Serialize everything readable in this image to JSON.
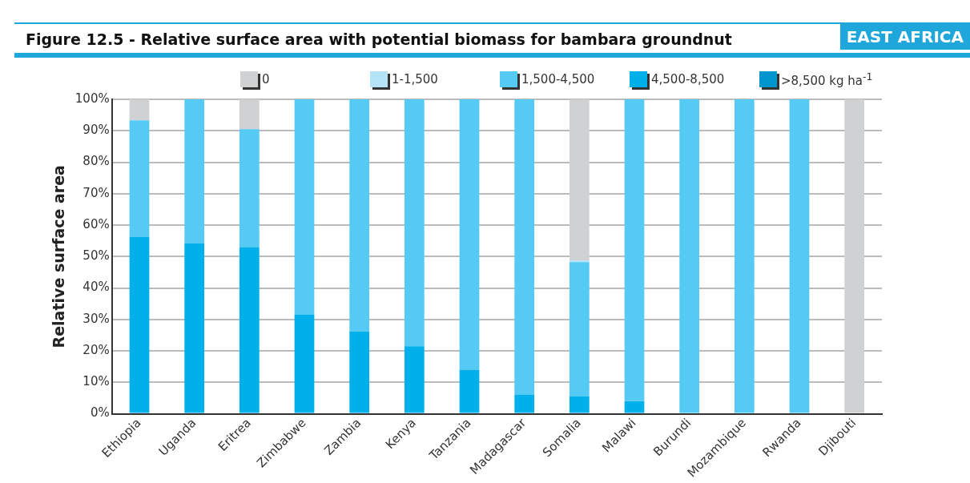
{
  "chart_data": {
    "type": "bar",
    "title": "Figure 12.5 - Relative surface area with potential biomass for bambara groundnut",
    "subtitle": "EAST AFRICA",
    "ylabel": "Relative surface area",
    "categories": [
      "Ethiopia",
      "Uganda",
      "Eritrea",
      "Zimbabwe",
      "Zambia",
      "Kenya",
      "Tanzania",
      "Madagascar",
      "Somalia",
      "Malawi",
      "Burundi",
      "Mozambique",
      "Rwanda",
      "Djibouti"
    ],
    "stacked": true,
    "legend": "top",
    "grid": "y",
    "ylim": [
      0,
      100
    ],
    "yticks": [
      {
        "value": 0,
        "label": "0%"
      },
      {
        "value": 10,
        "label": "10%"
      },
      {
        "value": 20,
        "label": "20%"
      },
      {
        "value": 30,
        "label": "30%"
      },
      {
        "value": 40,
        "label": "40%"
      },
      {
        "value": 50,
        "label": "50%"
      },
      {
        "value": 60,
        "label": "60%"
      },
      {
        "value": 70,
        "label": "70%"
      },
      {
        "value": 80,
        "label": "80%"
      },
      {
        "value": 90,
        "label": "90%"
      },
      {
        "value": 100,
        "label": "100%"
      }
    ],
    "series": [
      {
        "name": ">8,500 kg ha$^{-1}$",
        "color": "#0095cc",
        "values": [
          0,
          0,
          0,
          0,
          0,
          0,
          0,
          0,
          0,
          0,
          0,
          0,
          0,
          0
        ]
      },
      {
        "name": "4,500-8,500",
        "color": "#00b0ea",
        "values": [
          56.3,
          54.3,
          53,
          31.5,
          26.2,
          21.5,
          14,
          6,
          5.5,
          4,
          0,
          0,
          0,
          0
        ]
      },
      {
        "name": "1,500-4,500",
        "color": "#55caf4",
        "values": [
          37,
          45.7,
          37.5,
          68.5,
          73.8,
          78.5,
          86,
          94,
          42.7,
          96,
          100,
          100,
          100,
          0
        ]
      },
      {
        "name": "1-1,500",
        "color": "#b5e3f8",
        "values": [
          0,
          0,
          0,
          0,
          0,
          0,
          0,
          0,
          0.6,
          0,
          0,
          0,
          0,
          0
        ]
      },
      {
        "name": "0",
        "color": "#d0d1d3",
        "values": [
          6.7,
          0,
          9.5,
          0,
          0,
          0,
          0,
          0,
          51.2,
          0,
          0,
          0,
          0,
          100
        ]
      }
    ]
  }
}
